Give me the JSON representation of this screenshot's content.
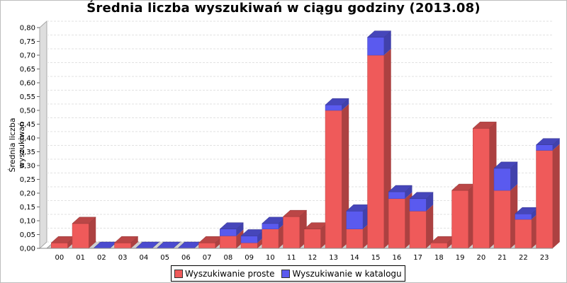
{
  "chart_data": {
    "type": "bar",
    "stacked": true,
    "title": "Średnia liczba wyszukiwań w ciągu godziny (2013.08)",
    "xlabel": "",
    "ylabel": "Średnia liczba wyszukiwań",
    "ylim": [
      0,
      0.8
    ],
    "yticks": [
      "0,00",
      "0,05",
      "0,10",
      "0,15",
      "0,20",
      "0,25",
      "0,30",
      "0,35",
      "0,40",
      "0,45",
      "0,50",
      "0,55",
      "0,60",
      "0,65",
      "0,70",
      "0,75",
      "0,80"
    ],
    "categories": [
      "00",
      "01",
      "02",
      "03",
      "04",
      "05",
      "06",
      "07",
      "08",
      "09",
      "10",
      "11",
      "12",
      "13",
      "14",
      "15",
      "16",
      "17",
      "18",
      "19",
      "20",
      "21",
      "22",
      "23"
    ],
    "series": [
      {
        "name": "Wyszukiwanie proste",
        "color": "#ef5a5a",
        "values": [
          0.02,
          0.09,
          0.0,
          0.02,
          0.0,
          0.0,
          0.0,
          0.02,
          0.045,
          0.02,
          0.07,
          0.115,
          0.07,
          0.5,
          0.07,
          0.7,
          0.18,
          0.135,
          0.02,
          0.21,
          0.435,
          0.21,
          0.105,
          0.355
        ]
      },
      {
        "name": "Wyszukiwanie w katalogu",
        "color": "#5a5aef",
        "values": [
          0.0,
          0.0,
          0.0,
          0.0,
          0.0,
          0.0,
          0.0,
          0.0,
          0.025,
          0.025,
          0.02,
          0.0,
          0.0,
          0.02,
          0.065,
          0.065,
          0.025,
          0.045,
          0.0,
          0.0,
          0.0,
          0.08,
          0.02,
          0.02
        ]
      }
    ],
    "grid": true,
    "legend_position": "bottom"
  }
}
